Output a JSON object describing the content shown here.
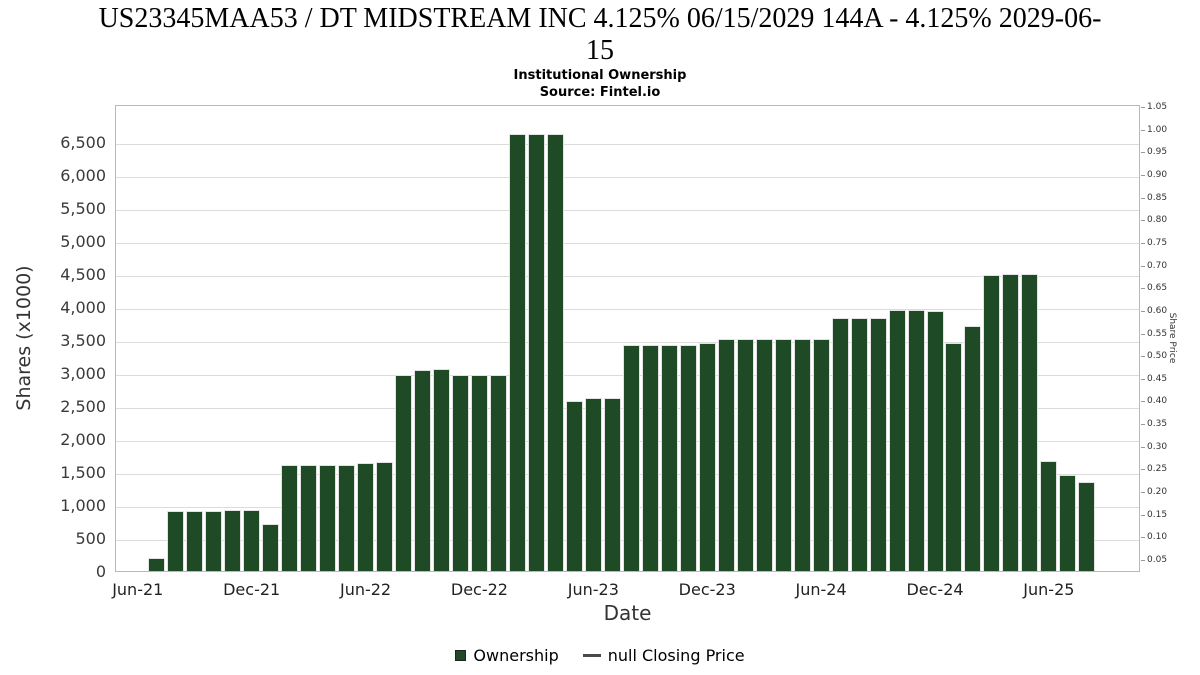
{
  "title": "US23345MAA53 / DT MIDSTREAM INC 4.125% 06/15/2029 144A - 4.125% 2029-06-\n15",
  "subtitle": "Institutional Ownership",
  "source": "Source: Fintel.io",
  "legend": {
    "ownership_label": "Ownership",
    "price_label": "null Closing Price"
  },
  "colors": {
    "bar_fill": "#1e4b26",
    "bar_edge": "#e3e3e3",
    "grid": "#dcdcdc",
    "plot_border": "#b9b9b9",
    "axis_text": "#3a3a3a"
  },
  "chart_data": {
    "type": "bar",
    "title": "US23345MAA53 / DT MIDSTREAM INC 4.125% 06/15/2029 144A - 4.125% 2029-06-15",
    "subtitle": "Institutional Ownership",
    "source": "Source: Fintel.io",
    "xlabel": "Date",
    "ylabel_left": "Shares (x1000)",
    "ylabel_right": "Share Price",
    "legend_position": "bottom",
    "grid": "horizontal",
    "y_left_axis": {
      "min": 0,
      "max_label": 6500,
      "top_value": 7080,
      "tick_step": 500,
      "tick_values": [
        0,
        500,
        1000,
        1500,
        2000,
        2500,
        3000,
        3500,
        4000,
        4500,
        5000,
        5500,
        6000,
        6500
      ],
      "tick_labels": [
        "0",
        "500",
        "1,000",
        "1,500",
        "2,000",
        "2,500",
        "3,000",
        "3,500",
        "4,000",
        "4,500",
        "5,000",
        "5,500",
        "6,000",
        "6,500"
      ]
    },
    "y_right_axis": {
      "tick_labels": [
        "1.05",
        "1.00",
        "0.95",
        "0.90",
        "0.85",
        "0.80",
        "0.75",
        "0.70",
        "0.65",
        "0.60",
        "0.55",
        "0.50",
        "0.45",
        "0.40",
        "0.35",
        "0.30",
        "0.25",
        "0.20",
        "0.15",
        "0.10",
        "0.05"
      ]
    },
    "x_axis": {
      "tick_labels": [
        "Jun-21",
        "Dec-21",
        "Jun-22",
        "Dec-22",
        "Jun-23",
        "Dec-23",
        "Jun-24",
        "Dec-24",
        "Jun-25"
      ],
      "tick_month_indices": [
        0,
        6,
        12,
        18,
        24,
        30,
        36,
        42,
        48
      ],
      "months_span": 54,
      "first_bar_month_index": 1
    },
    "series": [
      {
        "name": "Ownership",
        "type": "bar",
        "unit": "shares x1000",
        "months": [
          "Jul-21",
          "Aug-21",
          "Sep-21",
          "Oct-21",
          "Nov-21",
          "Dec-21",
          "Jan-22",
          "Feb-22",
          "Mar-22",
          "Apr-22",
          "May-22",
          "Jun-22",
          "Jul-22",
          "Aug-22",
          "Sep-22",
          "Oct-22",
          "Nov-22",
          "Dec-22",
          "Jan-23",
          "Feb-23",
          "Mar-23",
          "Apr-23",
          "May-23",
          "Jun-23",
          "Jul-23",
          "Aug-23",
          "Sep-23",
          "Oct-23",
          "Nov-23",
          "Dec-23",
          "Jan-24",
          "Feb-24",
          "Mar-24",
          "Apr-24",
          "May-24",
          "Jun-24",
          "Jul-24",
          "Aug-24",
          "Sep-24",
          "Oct-24",
          "Nov-24",
          "Dec-24",
          "Jan-25",
          "Feb-25",
          "Mar-25",
          "Apr-25",
          "May-25",
          "Jun-25",
          "Jul-25",
          "Aug-25"
        ],
        "values": [
          200,
          910,
          910,
          910,
          920,
          920,
          710,
          1610,
          1600,
          1600,
          1610,
          1640,
          1650,
          2970,
          3050,
          3060,
          2970,
          2970,
          2970,
          6620,
          6620,
          6620,
          2570,
          2630,
          2630,
          3430,
          3430,
          3430,
          3430,
          3450,
          3510,
          3510,
          3510,
          3510,
          3510,
          3510,
          3840,
          3830,
          3840,
          3950,
          3950,
          3940,
          3450,
          3720,
          4490,
          4510,
          4510,
          1670,
          1450,
          1350
        ]
      },
      {
        "name": "null Closing Price",
        "type": "line",
        "values": []
      }
    ]
  }
}
